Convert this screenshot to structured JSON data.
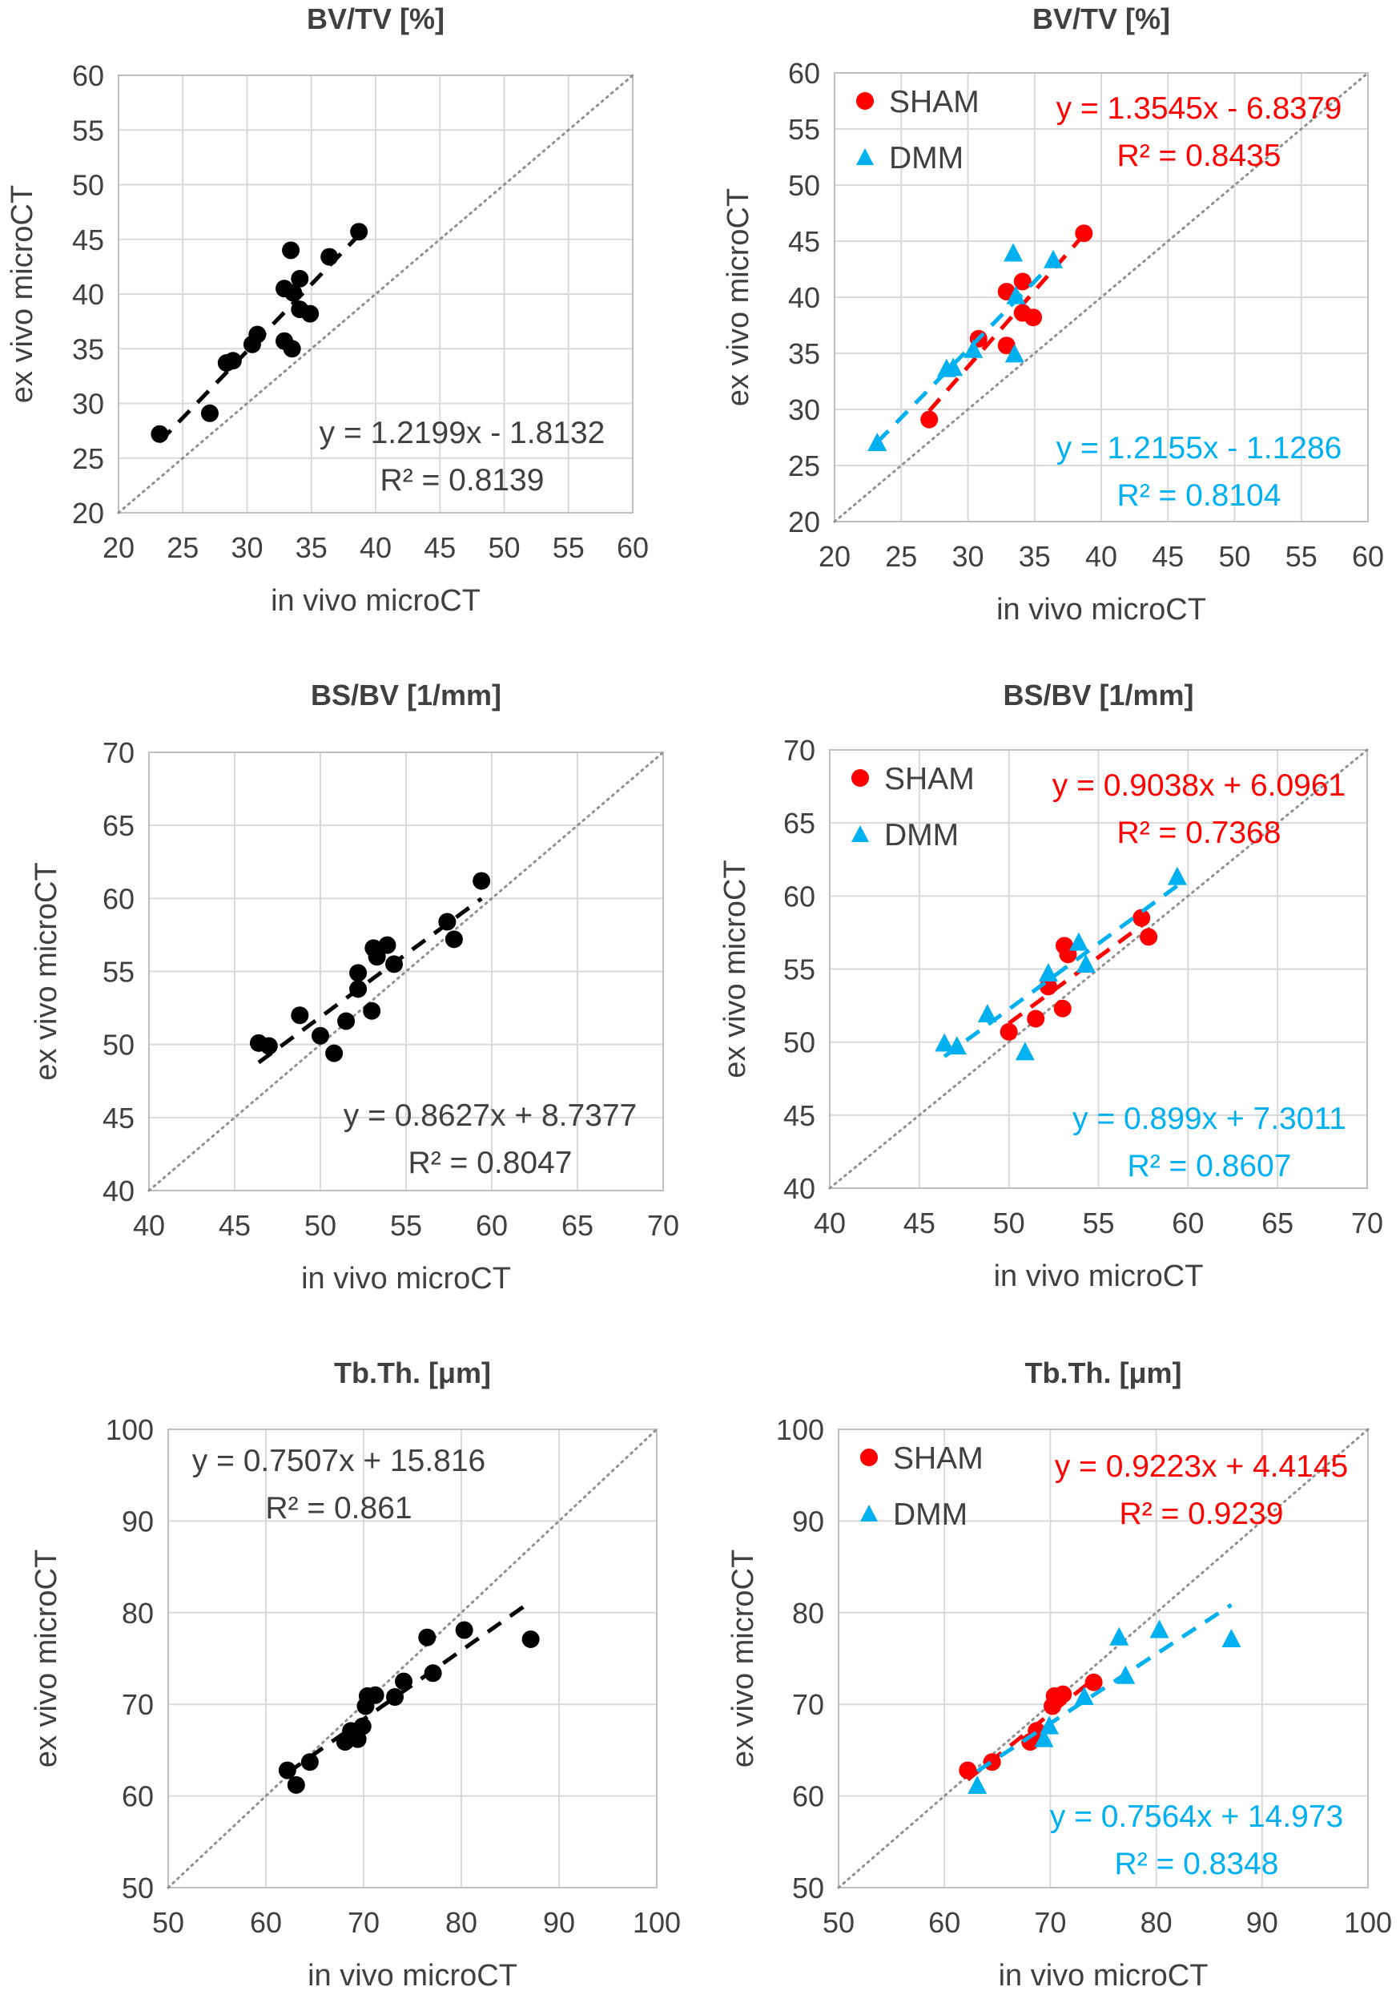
{
  "colors": {
    "sham": "#ff0000",
    "dmm": "#00b0f0",
    "pooled": "#000000",
    "identity_line": "#909090",
    "grid": "#d9d9d9",
    "text": "#404040"
  },
  "chart_data": [
    {
      "type": "scatter",
      "title": "BV/TV [%]",
      "xlabel": "in vivo microCT",
      "ylabel": "ex vivo microCT",
      "xlim": [
        20,
        60
      ],
      "ylim": [
        20,
        60
      ],
      "tick_step": 5,
      "grid": true,
      "identity_line": true,
      "series": [
        {
          "marker": "circle",
          "color": "#000000",
          "points": [
            [
              27.1,
              29.1
            ],
            [
              30.8,
              36.3
            ],
            [
              32.9,
              35.7
            ],
            [
              32.9,
              40.5
            ],
            [
              34.1,
              41.4
            ],
            [
              34.1,
              38.6
            ],
            [
              34.9,
              38.2
            ],
            [
              38.7,
              45.7
            ],
            [
              23.2,
              27.2
            ],
            [
              28.4,
              33.7
            ],
            [
              28.9,
              33.9
            ],
            [
              30.4,
              35.4
            ],
            [
              33.4,
              44.0
            ],
            [
              33.5,
              35.0
            ],
            [
              33.6,
              40.1
            ],
            [
              36.4,
              43.4
            ]
          ],
          "trend": {
            "slope": 1.2199,
            "intercept": -1.8132,
            "equation": "y = 1.2199x - 1.8132",
            "r2": "R² = 0.8139"
          }
        }
      ]
    },
    {
      "type": "scatter",
      "title": "BV/TV [%]",
      "xlabel": "in vivo microCT",
      "ylabel": "ex vivo microCT",
      "xlim": [
        20,
        60
      ],
      "ylim": [
        20,
        60
      ],
      "tick_step": 5,
      "grid": true,
      "identity_line": true,
      "legend": "top-left",
      "series": [
        {
          "name": "SHAM",
          "marker": "circle",
          "color": "#ff0000",
          "points": [
            [
              27.1,
              29.1
            ],
            [
              30.8,
              36.3
            ],
            [
              32.9,
              35.7
            ],
            [
              32.9,
              40.5
            ],
            [
              34.1,
              41.4
            ],
            [
              34.1,
              38.6
            ],
            [
              34.9,
              38.2
            ],
            [
              38.7,
              45.7
            ]
          ],
          "trend": {
            "slope": 1.3545,
            "intercept": -6.8379,
            "equation": "y = 1.3545x - 6.8379",
            "r2": "R² = 0.8435"
          }
        },
        {
          "name": "DMM",
          "marker": "triangle",
          "color": "#00b0f0",
          "points": [
            [
              23.2,
              27.0
            ],
            [
              28.4,
              33.6
            ],
            [
              28.9,
              33.7
            ],
            [
              30.4,
              35.3
            ],
            [
              33.4,
              43.9
            ],
            [
              33.5,
              34.9
            ],
            [
              33.6,
              40.1
            ],
            [
              36.4,
              43.3
            ]
          ],
          "trend": {
            "slope": 1.2155,
            "intercept": -1.1286,
            "equation": "y = 1.2155x - 1.1286",
            "r2": "R² = 0.8104"
          }
        }
      ]
    },
    {
      "type": "scatter",
      "title": "BS/BV [1/mm]",
      "xlabel": "in vivo microCT",
      "ylabel": "ex vivo microCT",
      "xlim": [
        40,
        70
      ],
      "ylim": [
        40,
        70
      ],
      "tick_step": 5,
      "grid": true,
      "identity_line": true,
      "series": [
        {
          "marker": "circle",
          "color": "#000000",
          "points": [
            [
              57.4,
              58.4
            ],
            [
              57.8,
              57.2
            ],
            [
              53.1,
              56.6
            ],
            [
              53.3,
              56.0
            ],
            [
              52.2,
              53.8
            ],
            [
              53.0,
              52.3
            ],
            [
              51.5,
              51.6
            ],
            [
              50.0,
              50.6
            ],
            [
              59.4,
              61.2
            ],
            [
              53.9,
              56.8
            ],
            [
              54.3,
              55.5
            ],
            [
              52.2,
              54.9
            ],
            [
              48.8,
              52.0
            ],
            [
              46.4,
              50.1
            ],
            [
              47.0,
              49.9
            ],
            [
              50.8,
              49.4
            ]
          ],
          "trend": {
            "slope": 0.8627,
            "intercept": 8.7377,
            "equation": "y = 0.8627x + 8.7377",
            "r2": "R² = 0.8047"
          }
        }
      ]
    },
    {
      "type": "scatter",
      "title": "BS/BV [1/mm]",
      "xlabel": "in vivo microCT",
      "ylabel": "ex vivo microCT",
      "xlim": [
        40,
        70
      ],
      "ylim": [
        40,
        70
      ],
      "tick_step": 5,
      "grid": true,
      "identity_line": true,
      "legend": "top-left",
      "series": [
        {
          "name": "SHAM",
          "marker": "circle",
          "color": "#ff0000",
          "points": [
            [
              57.4,
              58.5
            ],
            [
              57.8,
              57.2
            ],
            [
              53.1,
              56.6
            ],
            [
              53.3,
              56.0
            ],
            [
              52.2,
              53.8
            ],
            [
              53.0,
              52.3
            ],
            [
              51.5,
              51.6
            ],
            [
              50.0,
              50.7
            ]
          ],
          "trend": {
            "slope": 0.9038,
            "intercept": 6.0961,
            "equation": "y = 0.9038x + 6.0961",
            "r2": "R² = 0.7368"
          }
        },
        {
          "name": "DMM",
          "marker": "triangle",
          "color": "#00b0f0",
          "points": [
            [
              59.4,
              61.3
            ],
            [
              53.9,
              56.8
            ],
            [
              54.3,
              55.3
            ],
            [
              52.2,
              54.7
            ],
            [
              48.8,
              51.9
            ],
            [
              46.4,
              49.9
            ],
            [
              47.1,
              49.7
            ],
            [
              50.9,
              49.3
            ]
          ],
          "trend": {
            "slope": 0.899,
            "intercept": 7.3011,
            "equation": "y = 0.899x + 7.3011",
            "r2": "R² = 0.8607"
          }
        }
      ]
    },
    {
      "type": "scatter",
      "title": "Tb.Th. [μm]",
      "xlabel": "in vivo microCT",
      "ylabel": "ex vivo microCT",
      "xlim": [
        50,
        100
      ],
      "ylim": [
        50,
        100
      ],
      "tick_step": 10,
      "grid": true,
      "identity_line": true,
      "series": [
        {
          "marker": "circle",
          "color": "#000000",
          "points": [
            [
              62.2,
              62.8
            ],
            [
              64.5,
              63.7
            ],
            [
              68.1,
              65.9
            ],
            [
              68.7,
              67.1
            ],
            [
              70.2,
              69.8
            ],
            [
              70.4,
              70.9
            ],
            [
              71.2,
              71.0
            ],
            [
              74.1,
              72.5
            ],
            [
              63.1,
              61.2
            ],
            [
              69.4,
              66.2
            ],
            [
              69.9,
              67.6
            ],
            [
              73.2,
              70.8
            ],
            [
              76.5,
              77.3
            ],
            [
              77.1,
              73.4
            ],
            [
              80.3,
              78.1
            ],
            [
              87.1,
              77.1
            ]
          ],
          "trend": {
            "slope": 0.7507,
            "intercept": 15.816,
            "equation": "y = 0.7507x + 15.816",
            "r2": "R² = 0.861"
          }
        }
      ]
    },
    {
      "type": "scatter",
      "title": "Tb.Th. [μm]",
      "xlabel": "in vivo microCT",
      "ylabel": "ex vivo microCT",
      "xlim": [
        50,
        100
      ],
      "ylim": [
        50,
        100
      ],
      "tick_step": 10,
      "grid": true,
      "identity_line": true,
      "legend": "top-left",
      "series": [
        {
          "name": "SHAM",
          "marker": "circle",
          "color": "#ff0000",
          "points": [
            [
              62.2,
              62.8
            ],
            [
              64.5,
              63.7
            ],
            [
              68.1,
              65.9
            ],
            [
              68.7,
              67.1
            ],
            [
              70.2,
              69.8
            ],
            [
              70.4,
              70.9
            ],
            [
              71.2,
              71.1
            ],
            [
              74.1,
              72.4
            ]
          ],
          "trend": {
            "slope": 0.9223,
            "intercept": 4.4145,
            "equation": "y = 0.9223x + 4.4145",
            "r2": "R² = 0.9239"
          }
        },
        {
          "name": "DMM",
          "marker": "triangle",
          "color": "#00b0f0",
          "points": [
            [
              63.1,
              61.1
            ],
            [
              69.4,
              66.2
            ],
            [
              69.9,
              67.6
            ],
            [
              73.2,
              70.8
            ],
            [
              76.5,
              77.3
            ],
            [
              77.1,
              73.1
            ],
            [
              80.3,
              78.1
            ],
            [
              87.1,
              77.1
            ]
          ],
          "trend": {
            "slope": 0.7564,
            "intercept": 14.973,
            "equation": "y = 0.7564x + 14.973",
            "r2": "R² = 0.8348"
          }
        }
      ]
    }
  ]
}
